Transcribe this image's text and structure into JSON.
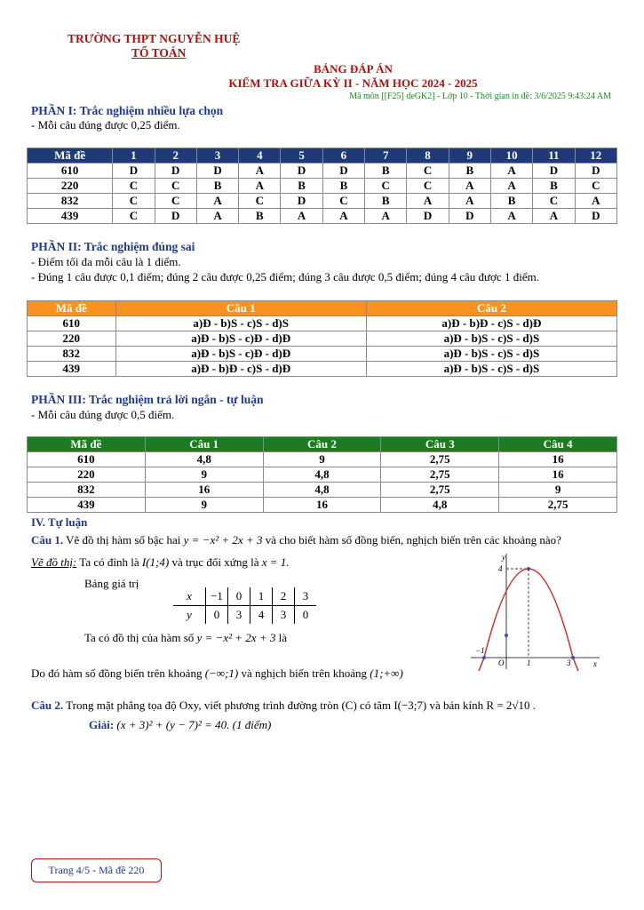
{
  "header": {
    "school": "TRƯỜNG THPT NGUYỄN HUỆ",
    "department": "TỔ TOÁN",
    "title": "BẢNG ĐÁP ÁN",
    "subtitle": "KIỂM TRA GIỮA KỲ II - NĂM HỌC 2024 - 2025",
    "meta": "Mã môn [[F25] deGK2] - Lớp 10 - Thời gian in đề: 3/6/2025 9:43:24 AM"
  },
  "part1": {
    "heading": "PHẦN I: Trắc nghiệm nhiều lựa chọn",
    "notes": [
      "- Mỗi câu đúng được 0,25 điểm."
    ],
    "table": {
      "headers": [
        "Mã đề",
        "1",
        "2",
        "3",
        "4",
        "5",
        "6",
        "7",
        "8",
        "9",
        "10",
        "11",
        "12"
      ],
      "rows": [
        [
          "610",
          "D",
          "D",
          "D",
          "A",
          "D",
          "D",
          "B",
          "C",
          "B",
          "A",
          "D",
          "D"
        ],
        [
          "220",
          "C",
          "C",
          "B",
          "A",
          "B",
          "B",
          "C",
          "C",
          "A",
          "A",
          "B",
          "C"
        ],
        [
          "832",
          "C",
          "C",
          "A",
          "C",
          "D",
          "C",
          "B",
          "A",
          "A",
          "B",
          "C",
          "A"
        ],
        [
          "439",
          "C",
          "D",
          "A",
          "B",
          "A",
          "A",
          "A",
          "D",
          "D",
          "A",
          "A",
          "D"
        ]
      ]
    }
  },
  "part2": {
    "heading": "PHẦN II: Trắc nghiệm đúng sai",
    "notes": [
      "- Điểm tối đa mỗi câu là 1 điểm.",
      "- Đúng 1 câu được 0,1 điểm; đúng 2 câu được 0,25 điểm; đúng 3 câu được 0,5 điểm; đúng 4 câu được 1 điểm."
    ],
    "table": {
      "headers": [
        "Mã đề",
        "Câu 1",
        "Câu 2"
      ],
      "rows": [
        [
          "610",
          "a)Đ - b)S - c)S - d)S",
          "a)Đ - b)Đ - c)S - d)Đ"
        ],
        [
          "220",
          "a)Đ - b)S - c)Đ - d)Đ",
          "a)Đ - b)S - c)S - d)S"
        ],
        [
          "832",
          "a)Đ - b)S - c)Đ - d)Đ",
          "a)Đ - b)S - c)S - d)S"
        ],
        [
          "439",
          "a)Đ - b)Đ - c)S - d)Đ",
          "a)Đ - b)S - c)S - d)S"
        ]
      ]
    }
  },
  "part3": {
    "heading": "PHẦN III: Trắc nghiệm trả lời ngắn - tự luận",
    "notes": [
      "- Mỗi câu đúng được 0,5 điểm."
    ],
    "table": {
      "headers": [
        "Mã đề",
        "Câu 1",
        "Câu 2",
        "Câu 3",
        "Câu 4"
      ],
      "rows": [
        [
          "610",
          "4,8",
          "9",
          "2,75",
          "16"
        ],
        [
          "220",
          "9",
          "4,8",
          "2,75",
          "16"
        ],
        [
          "832",
          "16",
          "4,8",
          "2,75",
          "9"
        ],
        [
          "439",
          "9",
          "16",
          "4,8",
          "2,75"
        ]
      ]
    }
  },
  "part4": {
    "heading": "IV. Tự luận",
    "q1": {
      "label": "Câu 1.",
      "text": "Vẽ đồ thị hàm số bậc hai",
      "formula": "y = −x² + 2x + 3",
      "text2": "và cho biết hàm số đồng biến, nghịch biến trên các khoảng nào?",
      "draw_label": "Vẽ đồ thị:",
      "vertex_text": "Ta có đỉnh là",
      "vertex": "I(1;4)",
      "axis_text": "và trục đối xứng là",
      "axis": "x = 1.",
      "value_table": {
        "title": "Bảng giá trị",
        "x_label": "x",
        "y_label": "y",
        "x": [
          "−1",
          "0",
          "1",
          "2",
          "3"
        ],
        "y": [
          "0",
          "3",
          "4",
          "3",
          "0"
        ]
      },
      "graph_text": "Ta có đồ thị của hàm số",
      "graph_text2": "là",
      "graph": {
        "x_label": "x",
        "y_label": "y",
        "ticks": [
          "4",
          "−1",
          "O",
          "1",
          "3"
        ]
      },
      "conclusion": "Do đó hàm số đồng biến trên khoảng",
      "increasing": "(−∞;1)",
      "conclusion2": "và nghịch biến trên khoảng",
      "decreasing": "(1;+∞)"
    },
    "q2": {
      "label": "Câu 2.",
      "text": "Trong mặt phẳng tọa độ Oxy, viết phương trình đường tròn (C) có tâm I(−3;7) và bán kính R = 2√10 .",
      "solution_label": "Giải:",
      "solution": "(x + 3)² + (y − 7)² = 40. (1 điểm)"
    }
  },
  "footer": "Trang 4/5 - Mã đề 220"
}
